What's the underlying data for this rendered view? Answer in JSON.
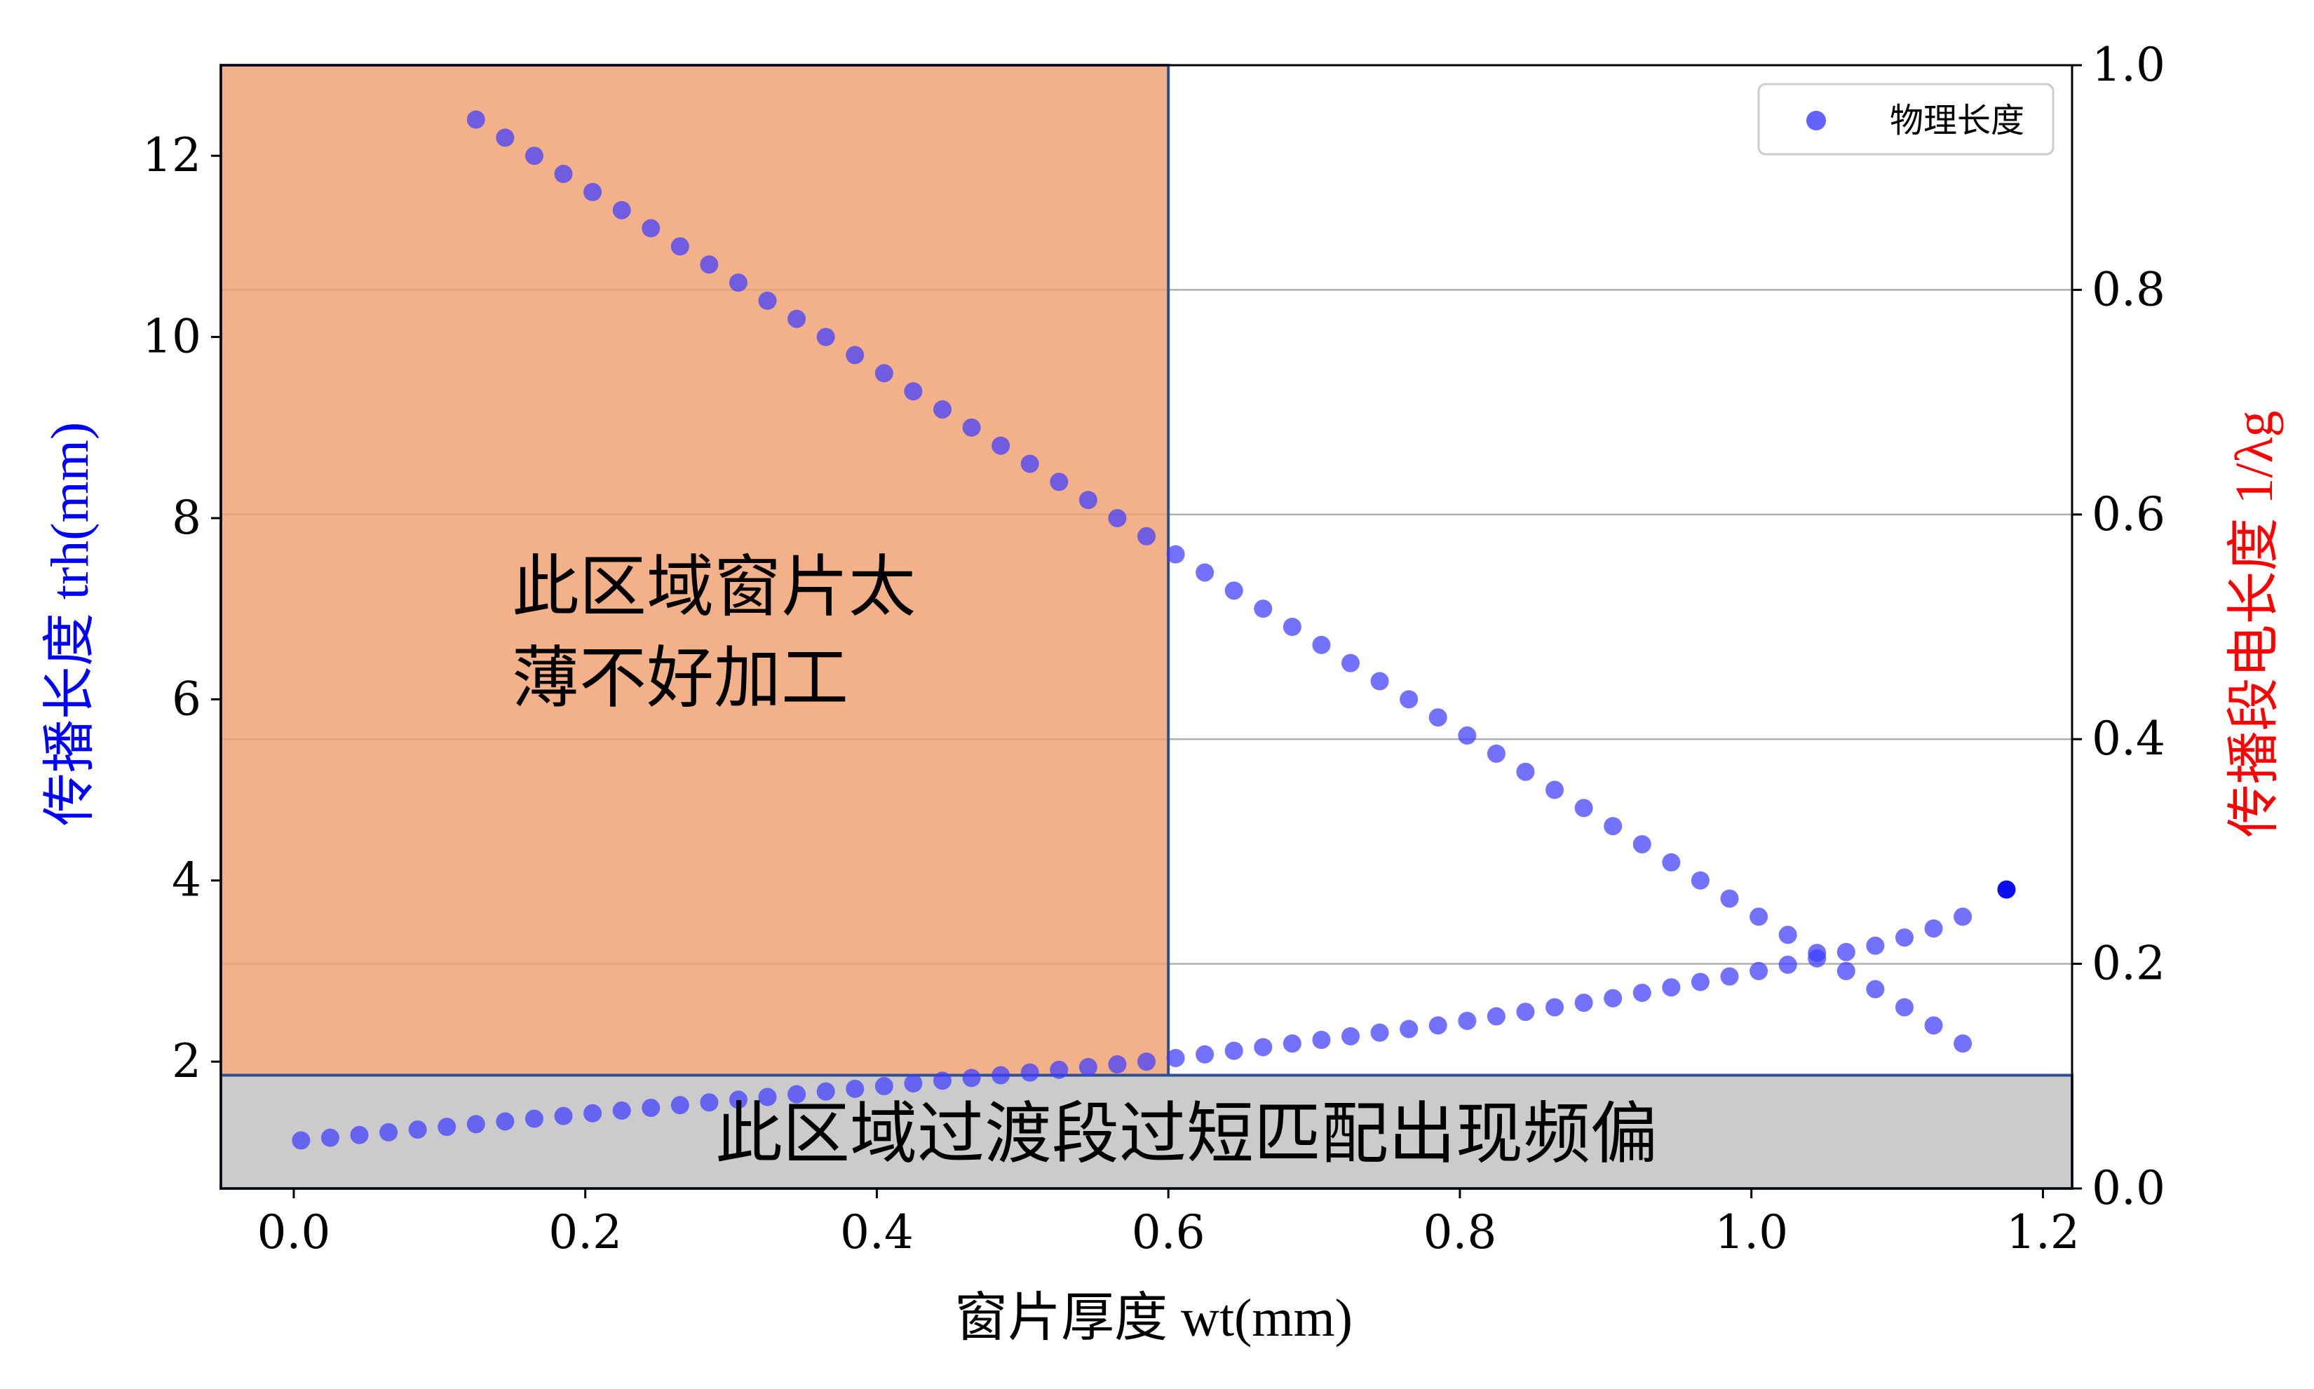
{
  "chart_data": {
    "type": "scatter",
    "xlabel": "窗片厚度 wt(mm)",
    "ylabel_left": "传播长度 trh(mm)",
    "ylabel_right": "传播段电长度 1/λg",
    "xlim": [
      -0.05,
      1.22
    ],
    "ylim_left": [
      0.6,
      13.0
    ],
    "ylim_right": [
      0.0,
      1.0
    ],
    "xticks": [
      "0.0",
      "0.2",
      "0.4",
      "0.6",
      "0.8",
      "1.0",
      "1.2"
    ],
    "yticks_left": [
      "2",
      "4",
      "6",
      "8",
      "10",
      "12"
    ],
    "yticks_right": [
      "0.0",
      "0.2",
      "0.4",
      "0.6",
      "0.8",
      "1.0"
    ],
    "grid": "horizontal, right axis",
    "legend": {
      "position": "top-right"
    },
    "series": [
      {
        "name": "物理长度",
        "color": "#3b3bff",
        "lower_branch": {
          "x": [
            0.005,
            0.025,
            0.045,
            0.065,
            0.085,
            0.105,
            0.125,
            0.145,
            0.165,
            0.185,
            0.205,
            0.225,
            0.245,
            0.265,
            0.285,
            0.305,
            0.325,
            0.345,
            0.365,
            0.385,
            0.405,
            0.425,
            0.445,
            0.465,
            0.485,
            0.505,
            0.525,
            0.545,
            0.565,
            0.585,
            0.605,
            0.625,
            0.645,
            0.665,
            0.685,
            0.705,
            0.725,
            0.745,
            0.765,
            0.785,
            0.805,
            0.825,
            0.845,
            0.865,
            0.885,
            0.905,
            0.925,
            0.945,
            0.965,
            0.985,
            1.005,
            1.025,
            1.045,
            1.065,
            1.085,
            1.105,
            1.125,
            1.145
          ],
          "y": [
            1.13,
            1.16,
            1.19,
            1.22,
            1.25,
            1.28,
            1.31,
            1.34,
            1.37,
            1.4,
            1.43,
            1.46,
            1.49,
            1.52,
            1.55,
            1.58,
            1.61,
            1.64,
            1.67,
            1.7,
            1.73,
            1.76,
            1.79,
            1.82,
            1.85,
            1.88,
            1.91,
            1.94,
            1.97,
            2.0,
            2.04,
            2.08,
            2.12,
            2.16,
            2.2,
            2.24,
            2.28,
            2.32,
            2.36,
            2.4,
            2.45,
            2.5,
            2.55,
            2.6,
            2.65,
            2.7,
            2.76,
            2.82,
            2.88,
            2.94,
            3.0,
            3.07,
            3.14,
            3.21,
            3.28,
            3.37,
            3.47,
            3.6
          ]
        },
        "upper_branch": {
          "x": [
            0.125,
            0.145,
            0.165,
            0.185,
            0.205,
            0.225,
            0.245,
            0.265,
            0.285,
            0.305,
            0.325,
            0.345,
            0.365,
            0.385,
            0.405,
            0.425,
            0.445,
            0.465,
            0.485,
            0.505,
            0.525,
            0.545,
            0.565,
            0.585,
            0.605,
            0.625,
            0.645,
            0.665,
            0.685,
            0.705,
            0.725,
            0.745,
            0.765,
            0.785,
            0.805,
            0.825,
            0.845,
            0.865,
            0.885,
            0.905,
            0.925,
            0.945,
            0.965,
            0.985,
            1.005,
            1.025,
            1.045,
            1.065,
            1.085,
            1.105,
            1.125,
            1.145
          ],
          "y": [
            12.4,
            12.2,
            12.0,
            11.8,
            11.6,
            11.4,
            11.2,
            11.0,
            10.8,
            10.6,
            10.4,
            10.2,
            10.0,
            9.8,
            9.6,
            9.4,
            9.2,
            9.0,
            8.8,
            8.6,
            8.4,
            8.2,
            8.0,
            7.8,
            7.6,
            7.4,
            7.2,
            7.0,
            6.8,
            6.6,
            6.4,
            6.2,
            6.0,
            5.8,
            5.6,
            5.4,
            5.2,
            5.0,
            4.8,
            4.6,
            4.4,
            4.2,
            4.0,
            3.8,
            3.6,
            3.4,
            3.2,
            3.0,
            2.8,
            2.6,
            2.4,
            2.2
          ]
        },
        "turning_point": {
          "x": 1.175,
          "y": 3.9
        }
      }
    ],
    "regions": [
      {
        "label": "此区域窗片太\n薄不好加工",
        "x_range": [
          -0.05,
          0.6
        ],
        "y_range": [
          1.85,
          13.0
        ],
        "color": "#f0a070"
      },
      {
        "label": "此区域过渡段过短匹配出现频偏",
        "x_range": [
          -0.05,
          1.22
        ],
        "y_range": [
          0.6,
          1.85
        ],
        "color": "#bfbfbf"
      }
    ]
  },
  "text": {
    "legend_label": "物理长度",
    "region_upper_line1": "此区域窗片太",
    "region_upper_line2": "薄不好加工",
    "region_lower": "此区域过渡段过短匹配出现频偏"
  },
  "colors": {
    "left_axis_label": "#0000ff",
    "right_axis_label": "#ff0000"
  }
}
